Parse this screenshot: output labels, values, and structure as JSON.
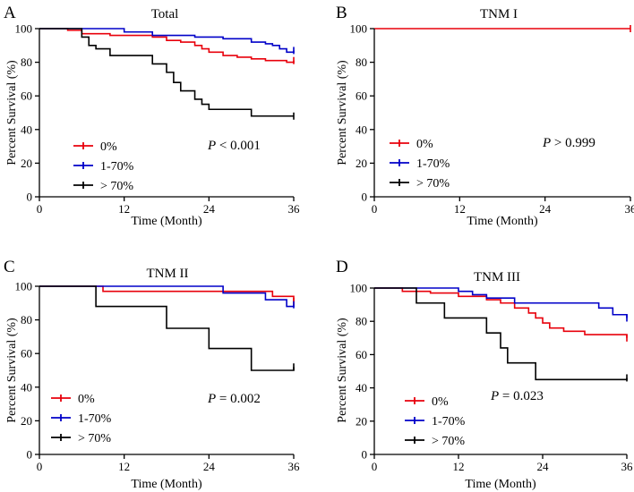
{
  "chart_data": [
    {
      "type": "line",
      "panel_label": "A",
      "title": "Total",
      "xlabel": "Time (Month)",
      "ylabel": "Percent Survival (%)",
      "xlim": [
        0,
        36
      ],
      "ylim": [
        0,
        100
      ],
      "xticks": [
        "0",
        "12",
        "24",
        "36"
      ],
      "yticks": [
        "0",
        "20",
        "40",
        "60",
        "80",
        "100"
      ],
      "p_value": "P < 0.001",
      "series": [
        {
          "name": "0%",
          "color": "#e8000b",
          "x": [
            0,
            4,
            6,
            10,
            16,
            18,
            20,
            22,
            23,
            24,
            26,
            28,
            30,
            32,
            35,
            36
          ],
          "y": [
            100,
            99,
            97,
            96,
            95,
            93,
            92,
            90,
            88,
            86,
            84,
            83,
            82,
            81,
            80,
            81
          ]
        },
        {
          "name": "1-70%",
          "color": "#0000c8",
          "x": [
            0,
            12,
            16,
            22,
            26,
            30,
            32,
            33,
            34,
            35,
            36
          ],
          "y": [
            100,
            98,
            96,
            95,
            94,
            92,
            91,
            90,
            88,
            86,
            87
          ]
        },
        {
          "name": "> 70%",
          "color": "#000000",
          "x": [
            0,
            6,
            7,
            8,
            10,
            16,
            18,
            19,
            20,
            22,
            23,
            24,
            30,
            36
          ],
          "y": [
            100,
            95,
            90,
            88,
            84,
            79,
            74,
            68,
            63,
            58,
            55,
            52,
            48,
            48
          ]
        }
      ]
    },
    {
      "type": "line",
      "panel_label": "B",
      "title": "TNM I",
      "xlabel": "Time (Month)",
      "ylabel": "Percent Survival (%)",
      "xlim": [
        0,
        36
      ],
      "ylim": [
        0,
        100
      ],
      "xticks": [
        "0",
        "12",
        "24",
        "36"
      ],
      "yticks": [
        "0",
        "20",
        "40",
        "60",
        "80",
        "100"
      ],
      "p_value": "P > 0.999",
      "series": [
        {
          "name": "0%",
          "color": "#e8000b",
          "x": [
            0,
            36
          ],
          "y": [
            100,
            100
          ]
        },
        {
          "name": "1-70%",
          "color": "#0000c8",
          "x": [],
          "y": []
        },
        {
          "name": "> 70%",
          "color": "#000000",
          "x": [],
          "y": []
        }
      ]
    },
    {
      "type": "line",
      "panel_label": "C",
      "title": "TNM II",
      "xlabel": "Time (Month)",
      "ylabel": "Percent Survival (%)",
      "xlim": [
        0,
        36
      ],
      "ylim": [
        0,
        100
      ],
      "xticks": [
        "0",
        "12",
        "24",
        "36"
      ],
      "yticks": [
        "0",
        "20",
        "40",
        "60",
        "80",
        "100"
      ],
      "p_value": "P = 0.002",
      "series": [
        {
          "name": "0%",
          "color": "#e8000b",
          "x": [
            0,
            9,
            30,
            33,
            36
          ],
          "y": [
            100,
            97,
            97,
            94,
            91
          ]
        },
        {
          "name": "1-70%",
          "color": "#0000c8",
          "x": [
            0,
            26,
            32,
            35,
            36
          ],
          "y": [
            100,
            96,
            92,
            88,
            89
          ]
        },
        {
          "name": "> 70%",
          "color": "#000000",
          "x": [
            0,
            8,
            18,
            24,
            30,
            36
          ],
          "y": [
            100,
            88,
            75,
            63,
            50,
            52
          ]
        }
      ]
    },
    {
      "type": "line",
      "panel_label": "D",
      "title": "TNM III",
      "xlabel": "Time (Month)",
      "ylabel": "Percent Survival (%)",
      "xlim": [
        0,
        36
      ],
      "ylim": [
        0,
        100
      ],
      "xticks": [
        "0",
        "12",
        "24",
        "36"
      ],
      "yticks": [
        "0",
        "20",
        "40",
        "60",
        "80",
        "100"
      ],
      "p_value": "P = 0.023",
      "series": [
        {
          "name": "0%",
          "color": "#e8000b",
          "x": [
            0,
            4,
            8,
            12,
            16,
            18,
            20,
            22,
            23,
            24,
            25,
            27,
            30,
            36
          ],
          "y": [
            100,
            98,
            97,
            95,
            93,
            91,
            88,
            85,
            82,
            79,
            76,
            74,
            72,
            70
          ]
        },
        {
          "name": "1-70%",
          "color": "#0000c8",
          "x": [
            0,
            12,
            14,
            16,
            20,
            30,
            32,
            34,
            36
          ],
          "y": [
            100,
            98,
            96,
            94,
            91,
            91,
            88,
            84,
            82
          ]
        },
        {
          "name": "> 70%",
          "color": "#000000",
          "x": [
            0,
            6,
            10,
            16,
            18,
            19,
            20,
            23,
            36
          ],
          "y": [
            100,
            91,
            82,
            73,
            64,
            55,
            55,
            45,
            46
          ]
        }
      ]
    }
  ]
}
